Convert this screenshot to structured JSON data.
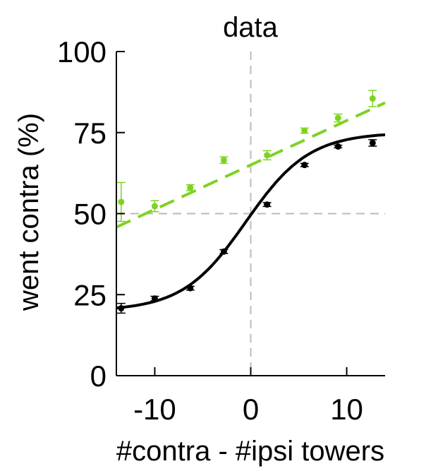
{
  "chart_data": {
    "type": "scatter",
    "title": "data",
    "xlabel": "#contra - #ipsi towers",
    "ylabel": "went contra (%)",
    "xlim": [
      -14,
      14
    ],
    "ylim": [
      0,
      100
    ],
    "xticks": [
      -10,
      0,
      10
    ],
    "yticks": [
      0,
      25,
      50,
      75,
      100
    ],
    "xtick_labels": [
      "-10",
      "0",
      "10"
    ],
    "ytick_labels": [
      "0",
      "25",
      "50",
      "75",
      "100"
    ],
    "grid": false,
    "reference_lines": {
      "x": 0,
      "y": 50,
      "color": "#bbbbbb"
    },
    "series": [
      {
        "color": "#000000",
        "points": [
          {
            "x": -13.5,
            "y": 20.8,
            "err": 1.5
          },
          {
            "x": -10.0,
            "y": 23.8,
            "err": 0.7
          },
          {
            "x": -6.3,
            "y": 27.0,
            "err": 0.6
          },
          {
            "x": -2.8,
            "y": 38.3,
            "err": 0.6
          },
          {
            "x": 1.7,
            "y": 52.8,
            "err": 0.6
          },
          {
            "x": 5.6,
            "y": 65.0,
            "err": 0.5
          },
          {
            "x": 9.1,
            "y": 70.7,
            "err": 0.4
          },
          {
            "x": 12.7,
            "y": 71.8,
            "err": 1.0
          }
        ],
        "fit": {
          "kind": "sigmoid",
          "lower": 20,
          "upper": 75,
          "center": -0.5,
          "scale": 3.3,
          "dashed": false
        }
      },
      {
        "color": "#7ed321",
        "points": [
          {
            "x": -13.5,
            "y": 53.6,
            "err": 6.0
          },
          {
            "x": -10.0,
            "y": 52.3,
            "err": 1.7
          },
          {
            "x": -6.3,
            "y": 58.0,
            "err": 0.9
          },
          {
            "x": -2.8,
            "y": 66.5,
            "err": 1.0
          },
          {
            "x": 1.7,
            "y": 68.0,
            "err": 1.4
          },
          {
            "x": 5.6,
            "y": 75.6,
            "err": 0.8
          },
          {
            "x": 9.1,
            "y": 79.5,
            "err": 1.2
          },
          {
            "x": 12.7,
            "y": 85.5,
            "err": 2.5
          }
        ],
        "fit": {
          "kind": "linear",
          "slope": 1.37,
          "intercept": 65,
          "dashed": true
        }
      }
    ]
  }
}
